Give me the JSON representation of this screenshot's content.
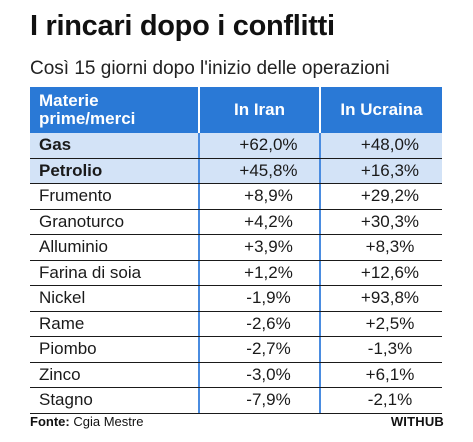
{
  "title": "I rincari dopo i conflitti",
  "subtitle": "Così 15 giorni dopo l'inizio delle operazioni",
  "table": {
    "headers": {
      "col1_line1": "Materie",
      "col1_line2": "prime/merci",
      "col2": "In Iran",
      "col3": "In Ucraina"
    },
    "rows": [
      {
        "name": "Gas",
        "iran": "+62,0%",
        "ucraina": "+48,0%"
      },
      {
        "name": "Petrolio",
        "iran": "+45,8%",
        "ucraina": "+16,3%"
      },
      {
        "name": "Frumento",
        "iran": "+8,9%",
        "ucraina": "+29,2%"
      },
      {
        "name": "Granoturco",
        "iran": "+4,2%",
        "ucraina": "+30,3%"
      },
      {
        "name": "Alluminio",
        "iran": "+3,9%",
        "ucraina": "+8,3%"
      },
      {
        "name": "Farina di soia",
        "iran": "+1,2%",
        "ucraina": "+12,6%"
      },
      {
        "name": "Nickel",
        "iran": "-1,9%",
        "ucraina": "+93,8%"
      },
      {
        "name": "Rame",
        "iran": "-2,6%",
        "ucraina": "+2,5%"
      },
      {
        "name": "Piombo",
        "iran": "-2,7%",
        "ucraina": "-1,3%"
      },
      {
        "name": "Zinco",
        "iran": "-3,0%",
        "ucraina": "+6,1%"
      },
      {
        "name": "Stagno",
        "iran": "-7,9%",
        "ucraina": "-2,1%"
      }
    ]
  },
  "footer": {
    "source_label": "Fonte:",
    "source_value": "Cgia Mestre",
    "brand": "WITHUB"
  },
  "colors": {
    "header_bg": "#2a79d6",
    "highlight_row_bg": "#d3e3f7",
    "column_divider": "#4a8ce0"
  }
}
